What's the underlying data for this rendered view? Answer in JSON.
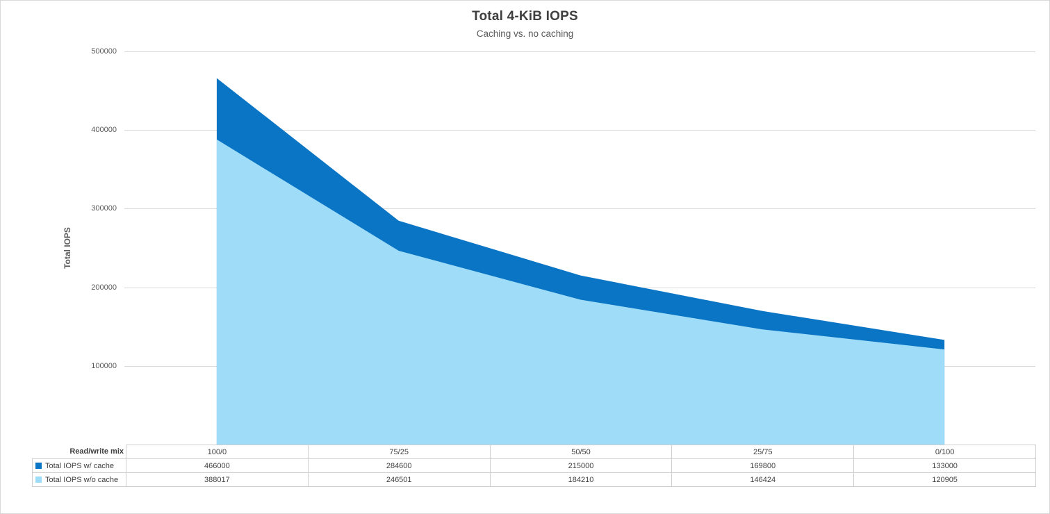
{
  "chart_data": {
    "type": "area",
    "title": "Total 4-KiB IOPS",
    "subtitle": "Caching vs. no caching",
    "xlabel": "Read/write mix",
    "ylabel": "Total IOPS",
    "categories": [
      "100/0",
      "75/25",
      "50/50",
      "25/75",
      "0/100"
    ],
    "series": [
      {
        "name": "Total IOPS w/ cache",
        "color": "#0b75c5",
        "values": [
          466000,
          284600,
          215000,
          169800,
          133000
        ]
      },
      {
        "name": "Total IOPS w/o cache",
        "color": "#9edcf7",
        "values": [
          388017,
          246501,
          184210,
          146424,
          120905
        ]
      }
    ],
    "ylim": [
      0,
      500000
    ],
    "yticks": [
      100000,
      200000,
      300000,
      400000,
      500000
    ],
    "grid": true,
    "legend_position": "data-table-left"
  },
  "colors": {
    "series_with_cache": "#0b75c5",
    "series_without_cache": "#9edcf7",
    "gridline": "#d9d9d9",
    "canvas_border": "#d9d9d9",
    "table_border": "#cfcfcf",
    "title_text": "#3f3f3f",
    "axis_text": "#595959"
  }
}
